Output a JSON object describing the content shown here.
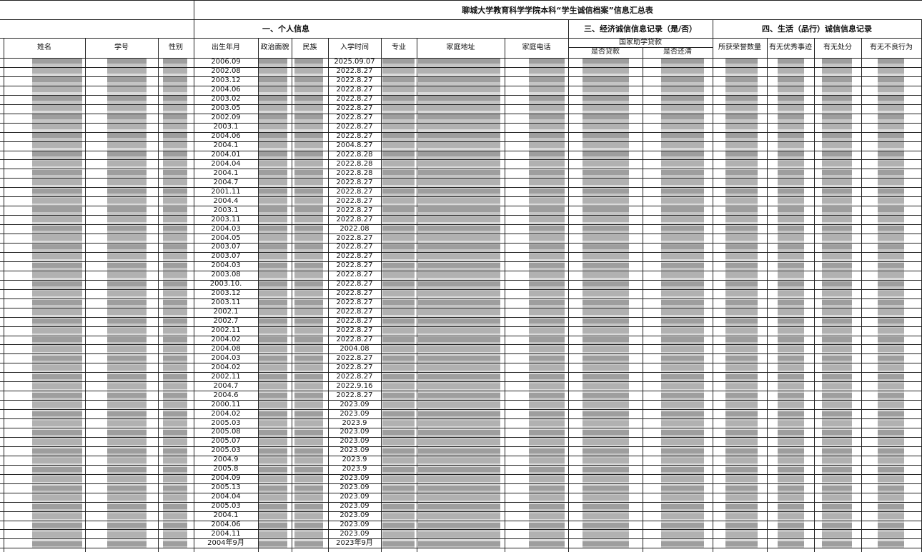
{
  "header": {
    "title": "聊城大学教育科学学院本科“学生诚信档案”信息汇总表"
  },
  "sections": [
    {
      "label": "一、个人信息"
    },
    {
      "label": "三、经济诚信信息记录（是/否）"
    },
    {
      "label": "四、生活（品行）诚信信息记录"
    }
  ],
  "columns": [
    "姓名",
    "学号",
    "性别",
    "出生年月",
    "政治面貌",
    "民族",
    "入学时间",
    "专业",
    "家庭地址",
    "家庭电话",
    "所获荣誉数量",
    "有无优秀事迹",
    "有无处分",
    "有无不良行为"
  ],
  "loan_group": "国家助学贷款",
  "loan_columns": [
    "是否贷款",
    "是否还清"
  ],
  "rows": [
    [
      "2006.09",
      "2025.09.07"
    ],
    [
      "2002.08",
      "2022.8.27"
    ],
    [
      "2003.12",
      "2022.8.27"
    ],
    [
      "2004.06",
      "2022.8.27"
    ],
    [
      "2003.02",
      "2022.8.27"
    ],
    [
      "2003.05",
      "2022.8.27"
    ],
    [
      "2002.09",
      "2022.8.27"
    ],
    [
      "2003.1",
      "2022.8.27"
    ],
    [
      "2004.06",
      "2022.8.27"
    ],
    [
      "2004.1",
      "2004.8.27"
    ],
    [
      "2004.01",
      "2022.8.28"
    ],
    [
      "2004.04",
      "2022.8.28"
    ],
    [
      "2004.1",
      "2022.8.28"
    ],
    [
      "2004.7",
      "2022.8.27"
    ],
    [
      "2001.11",
      "2022.8.27"
    ],
    [
      "2004.4",
      "2022.8.27"
    ],
    [
      "2003.1",
      "2022.8.27"
    ],
    [
      "2003.11",
      "2022.8.27"
    ],
    [
      "2004.03",
      "2022.08"
    ],
    [
      "2004.05",
      "2022.8.27"
    ],
    [
      "2003.07",
      "2022.8.27"
    ],
    [
      "2003.07",
      "2022.8.27"
    ],
    [
      "2004.03",
      "2022.8.27"
    ],
    [
      "2003.08",
      "2022.8.27"
    ],
    [
      "2003.10.",
      "2022.8.27"
    ],
    [
      "2003.12",
      "2022.8.27"
    ],
    [
      "2003.11",
      "2022.8.27"
    ],
    [
      "2002.1",
      "2022.8.27"
    ],
    [
      "2002.7",
      "2022.8.27"
    ],
    [
      "2002.11",
      "2022.8.27"
    ],
    [
      "2004.02",
      "2022.8.27"
    ],
    [
      "2004.08",
      "2004.08"
    ],
    [
      "2004.03",
      "2022.8.27"
    ],
    [
      "2004.02",
      "2022.8.27"
    ],
    [
      "2002.11",
      "2022.8.27"
    ],
    [
      "2004.7",
      "2022.9.16"
    ],
    [
      "2004.6",
      "2022.8.27"
    ],
    [
      "2000.11",
      "2023.09"
    ],
    [
      "2004.02",
      "2023.09"
    ],
    [
      "2005.03",
      "2023.9"
    ],
    [
      "2005.08",
      "2023.09"
    ],
    [
      "2005.07",
      "2023.09"
    ],
    [
      "2005.03",
      "2023.09"
    ],
    [
      "2004.9",
      "2023.9"
    ],
    [
      "2005.8",
      "2023.9"
    ],
    [
      "2004.09",
      "2023.09"
    ],
    [
      "2005.13",
      "2023.09"
    ],
    [
      "2004.04",
      "2023.09"
    ],
    [
      "2005.03",
      "2023.09"
    ],
    [
      "2004.1",
      "2023.09"
    ],
    [
      "2004.06",
      "2023.09"
    ],
    [
      "2004.11",
      "2023.09"
    ],
    [
      "2004年9月",
      "2023年9月"
    ]
  ]
}
